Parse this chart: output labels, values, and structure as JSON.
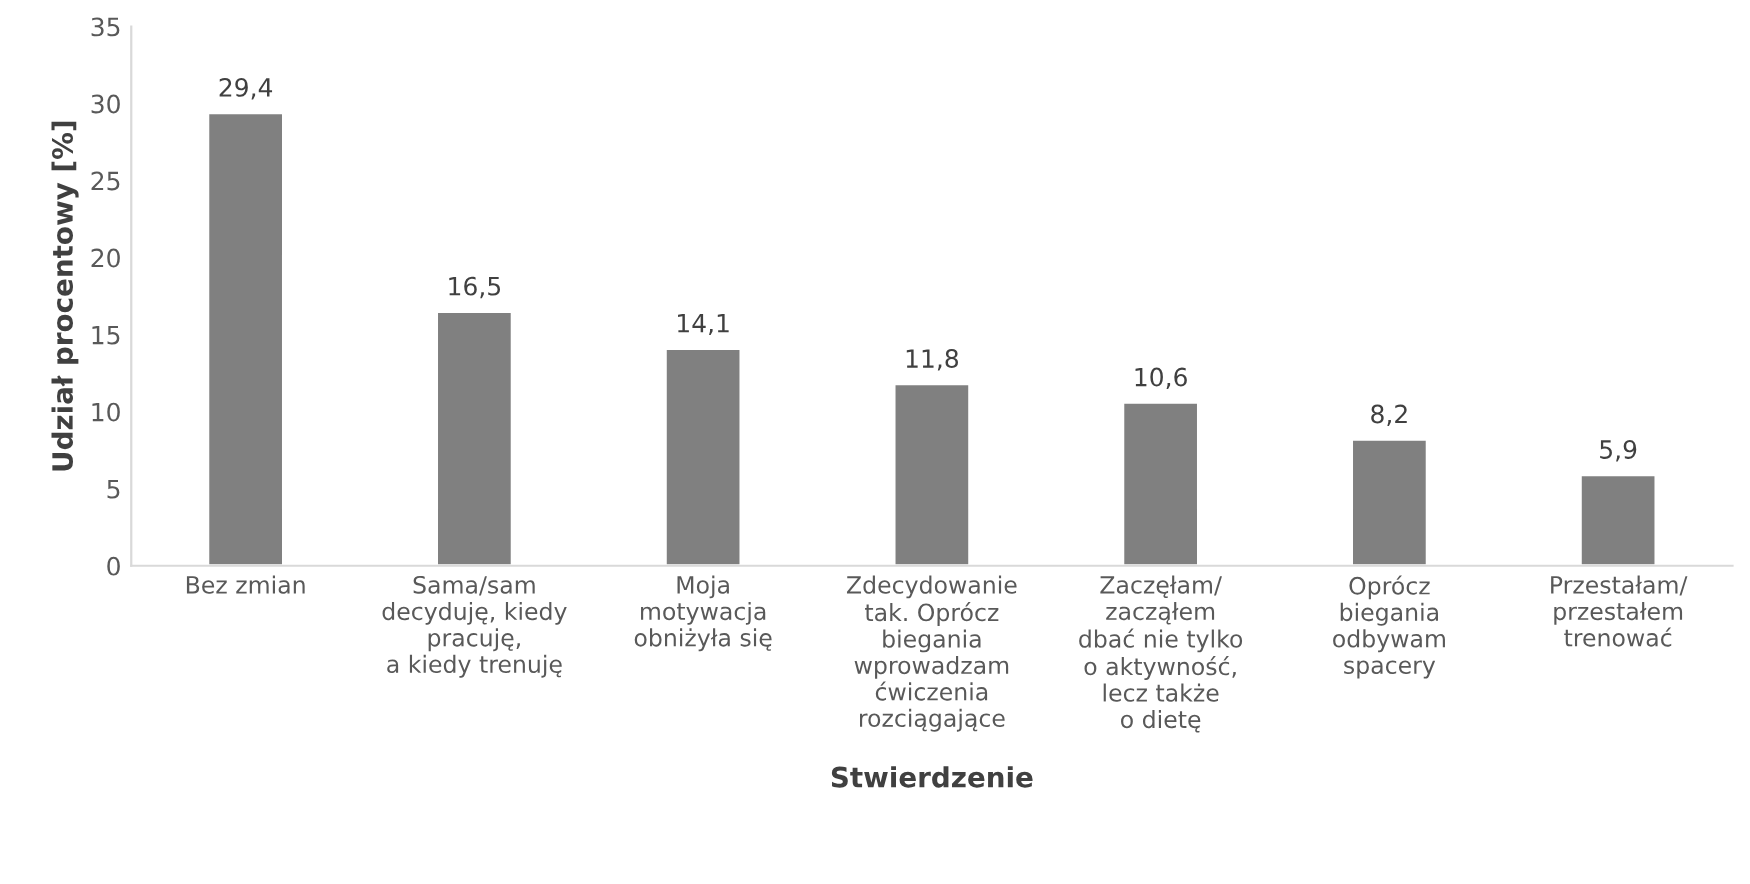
{
  "chart_data": {
    "type": "bar",
    "xlabel": "Stwierdzenie",
    "ylabel": "Udział procentowy [%]",
    "categories": [
      "Bez zmian",
      "Sama/sam\ndecyduję, kiedy\npracuję,\na kiedy trenuję",
      "Moja\nmotywacja\nobniżyła się",
      "Zdecydowanie\ntak. Oprócz\nbiegania\nwprowadzam\nćwiczenia\nrozciągające",
      "Zaczęłam/\nzacząłem\ndbać nie tylko\no aktywność,\nlecz także\no dietę",
      "Oprócz\nbiegania\nodbywam\nspacery",
      "Przestałam/\nprzestałem\ntrenować"
    ],
    "values": [
      29.4,
      16.5,
      14.1,
      11.8,
      10.6,
      8.2,
      5.9
    ],
    "value_labels": [
      "29,4",
      "16,5",
      "14,1",
      "11,8",
      "10,6",
      "8,2",
      "5,9"
    ],
    "color": "#808080",
    "ylim": [
      0,
      35
    ],
    "yticks": [
      0,
      5,
      10,
      15,
      20,
      25,
      30,
      35
    ],
    "grid": false
  }
}
